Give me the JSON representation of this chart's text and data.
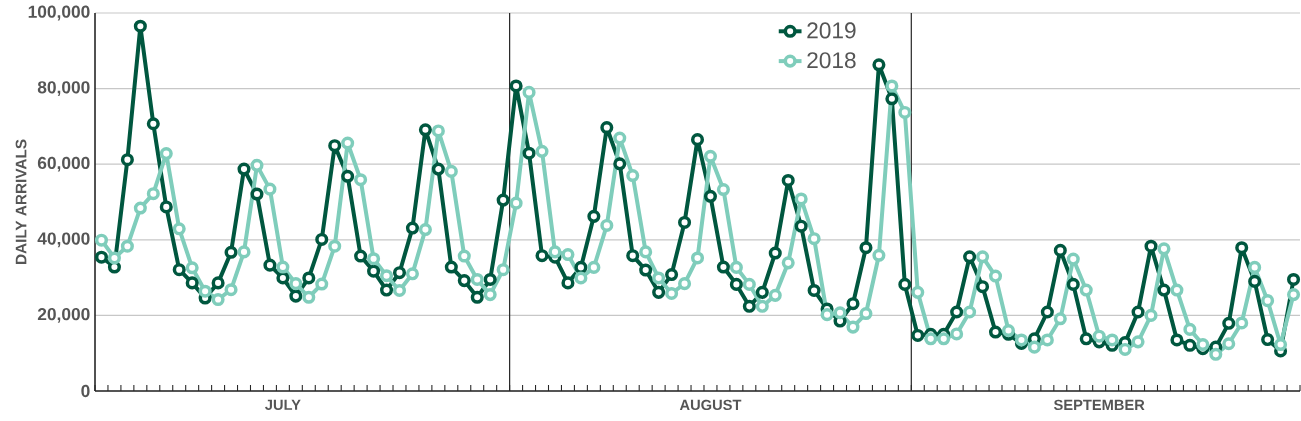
{
  "chart_data": {
    "type": "line",
    "ylabel": "DAILY ARRIVALS",
    "categories": [
      null,
      null,
      null,
      null,
      null,
      null,
      null,
      null,
      null,
      null,
      null,
      null,
      null,
      null,
      "JULY",
      null,
      null,
      null,
      null,
      null,
      null,
      null,
      null,
      null,
      null,
      null,
      null,
      null,
      null,
      null,
      null,
      null,
      null,
      null,
      null,
      null,
      null,
      null,
      null,
      null,
      null,
      null,
      null,
      null,
      null,
      null,
      null,
      "AUGUST",
      null,
      null,
      null,
      null,
      null,
      null,
      null,
      null,
      null,
      null,
      null,
      null,
      null,
      null,
      null,
      null,
      null,
      null,
      null,
      null,
      null,
      null,
      null,
      null,
      null,
      null,
      null,
      null,
      null,
      "SEPTEMBER",
      null,
      null,
      null,
      null,
      null,
      null,
      null,
      null,
      null,
      null,
      null,
      null,
      null,
      null,
      null
    ],
    "series": [
      {
        "name": "2019",
        "color": "#00573f",
        "values": [
          35400,
          32800,
          61200,
          96500,
          70700,
          48700,
          32100,
          28600,
          24600,
          28600,
          36700,
          58700,
          52100,
          33300,
          29900,
          25100,
          29900,
          40100,
          64900,
          56800,
          35700,
          31700,
          26700,
          31300,
          43100,
          69100,
          58700,
          32800,
          29200,
          24800,
          29500,
          50500,
          80700,
          62900,
          35800,
          35400,
          28600,
          32700,
          46200,
          69700,
          60100,
          35800,
          32000,
          26100,
          30800,
          44600,
          66500,
          51500,
          32800,
          28200,
          22400,
          26100,
          36500,
          55700,
          43600,
          26600,
          21700,
          18500,
          23100,
          37900,
          86300,
          77300,
          28200,
          14700,
          15000,
          15000,
          20900,
          35500,
          27600,
          15600,
          15000,
          12600,
          13800,
          20900,
          37200,
          28200,
          13800,
          13000,
          12100,
          12800,
          20900,
          38300,
          26700,
          13500,
          12100,
          11200,
          11600,
          17900,
          37900,
          29000,
          13600,
          10600,
          29500
        ]
      },
      {
        "name": "2018",
        "color": "#7fcdbb",
        "values": [
          39900,
          35200,
          38300,
          48400,
          52200,
          62800,
          42900,
          32600,
          26400,
          24200,
          26800,
          36800,
          59700,
          53400,
          32800,
          28400,
          24800,
          28300,
          38300,
          65600,
          55900,
          35000,
          30500,
          26600,
          31000,
          42700,
          68800,
          58100,
          35700,
          29500,
          25500,
          32100,
          49700,
          79000,
          63400,
          36800,
          36100,
          29900,
          32700,
          43800,
          66900,
          57000,
          36800,
          29900,
          25800,
          28400,
          35200,
          62100,
          53300,
          32700,
          28200,
          22400,
          25300,
          33900,
          50800,
          40300,
          20200,
          20700,
          16900,
          20500,
          35900,
          80700,
          73700,
          26100,
          13800,
          13800,
          15100,
          20900,
          35500,
          30400,
          16000,
          13500,
          11600,
          13500,
          19100,
          34900,
          26700,
          14500,
          13500,
          11000,
          13000,
          20000,
          37600,
          26700,
          16300,
          12300,
          9700,
          12500,
          18000,
          32700,
          23900,
          12300,
          25500
        ]
      }
    ],
    "ylim": [
      0,
      100000
    ],
    "yticks": [
      0,
      {
        "value": 20000,
        "label": "20,000"
      },
      {
        "value": 40000,
        "label": "40,000"
      },
      {
        "value": 60000,
        "label": "60,000"
      },
      {
        "value": 80000,
        "label": "80,000"
      },
      {
        "value": 100000,
        "label": "100,000"
      }
    ],
    "grid": "y",
    "legend": "top",
    "marker": "circle",
    "line_style": "solid"
  }
}
